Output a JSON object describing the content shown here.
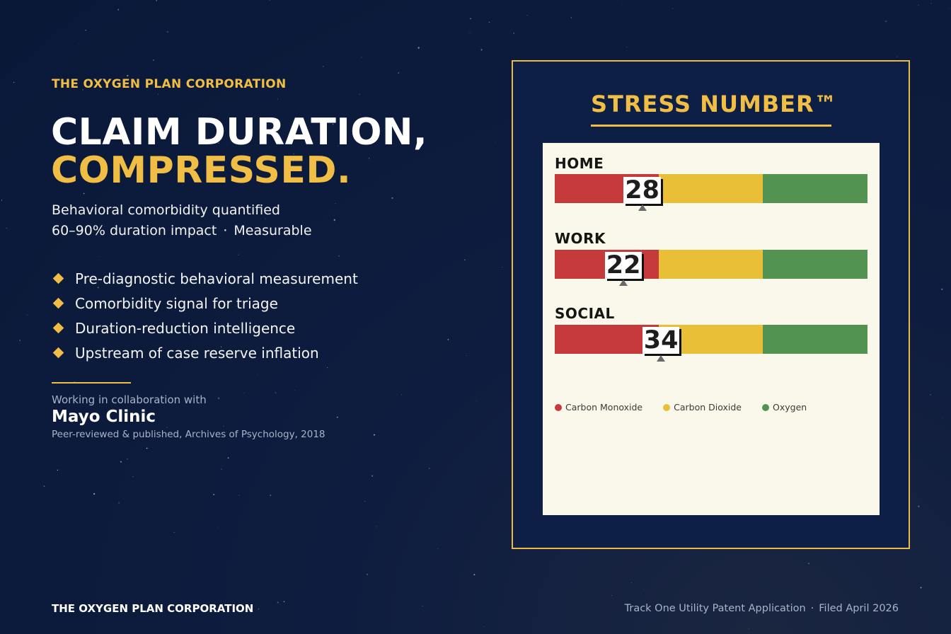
{
  "brand": "THE OXYGEN PLAN CORPORATION",
  "headline": {
    "line1": "CLAIM DURATION,",
    "line2": "COMPRESSED."
  },
  "subtitle": {
    "line1": "Behavioral comorbidity quantified",
    "line2_a": "60–90% duration impact",
    "line2_sep": "·",
    "line2_b": "Measurable"
  },
  "bullets": [
    "Pre-diagnostic behavioral measurement",
    "Comorbidity signal for triage",
    "Duration-reduction intelligence",
    "Upstream of case reserve inflation"
  ],
  "collaboration": {
    "intro": "Working in collaboration with",
    "partner": "Mayo Clinic",
    "citation": "Peer-reviewed & published, Archives of Psychology, 2018"
  },
  "footer": {
    "left": "THE OXYGEN PLAN CORPORATION",
    "right_a": "Track One Utility Patent Application",
    "right_sep": "·",
    "right_b": "Filed April 2026"
  },
  "panel": {
    "title": "STRESS NUMBER™",
    "scale_max": 100,
    "rows": [
      {
        "label": "HOME",
        "score": "28",
        "value": 28
      },
      {
        "label": "WORK",
        "score": "22",
        "value": 22
      },
      {
        "label": "SOCIAL",
        "score": "34",
        "value": 34
      }
    ],
    "legend": [
      {
        "label": "Carbon Monoxide",
        "color": "#c73a3b"
      },
      {
        "label": "Carbon Dioxide",
        "color": "#e9bf38"
      },
      {
        "label": "Oxygen",
        "color": "#529352"
      }
    ]
  },
  "colors": {
    "accent": "#f0bd45",
    "background": "#0e1c3f",
    "card": "#faf8ea"
  }
}
